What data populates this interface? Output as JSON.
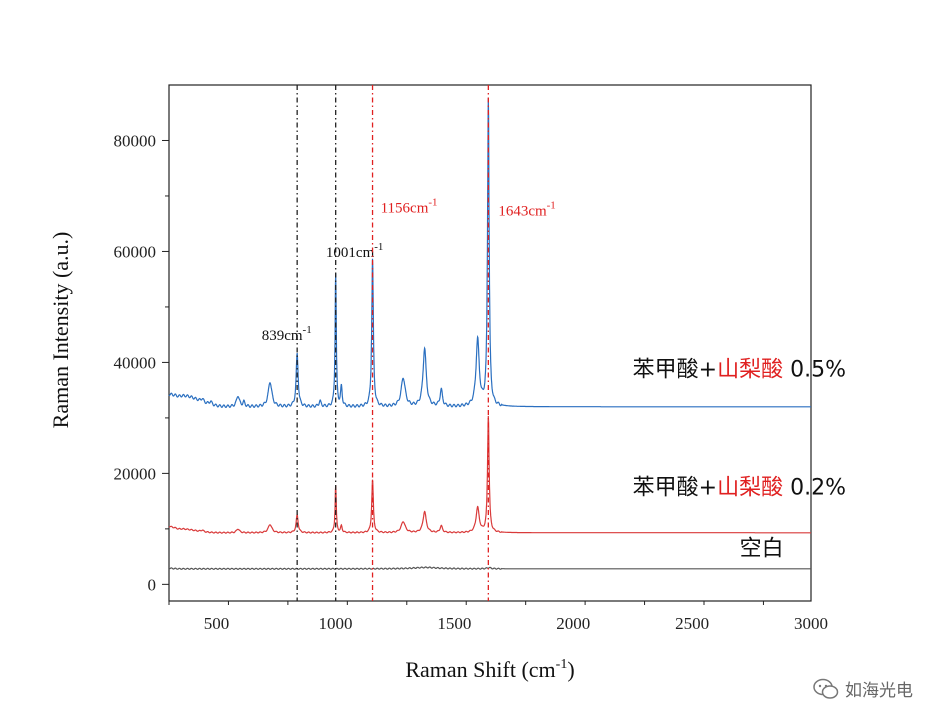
{
  "chart_data": {
    "type": "line",
    "xlabel": "Raman Shift (cm",
    "xlabel_sup": "-1",
    "xlabel_close": ")",
    "ylabel": "Raman Intensity (a.u.)",
    "xlim": [
      300,
      3000
    ],
    "ylim": [
      -3000,
      90000
    ],
    "xticks": [
      500,
      1000,
      1500,
      2000,
      2500,
      3000
    ],
    "yticks": [
      0,
      20000,
      40000,
      60000,
      80000
    ],
    "grid": false,
    "series": [
      {
        "name": "空白",
        "color": "#555555",
        "baseline": 2800,
        "start": 2900,
        "shoulder": [],
        "peaks": [
          {
            "x": 1380,
            "h": 250,
            "w": 60
          },
          {
            "x": 1645,
            "h": 200,
            "w": 10
          }
        ]
      },
      {
        "name": "苯甲酸+山梨酸 0.2%",
        "color": "#d93a3a",
        "baseline": 9300,
        "start": 10000,
        "shoulder": [
          {
            "x": 350,
            "h": 700,
            "w": 80
          }
        ],
        "peaks": [
          {
            "x": 440,
            "h": 300,
            "w": 6
          },
          {
            "x": 590,
            "h": 700,
            "w": 7
          },
          {
            "x": 725,
            "h": 1500,
            "w": 9
          },
          {
            "x": 839,
            "h": 3200,
            "w": 5
          },
          {
            "x": 1001,
            "h": 8500,
            "w": 3
          },
          {
            "x": 1025,
            "h": 1200,
            "w": 4
          },
          {
            "x": 1156,
            "h": 9500,
            "w": 4
          },
          {
            "x": 1285,
            "h": 2000,
            "w": 10
          },
          {
            "x": 1375,
            "h": 3800,
            "w": 8
          },
          {
            "x": 1445,
            "h": 1200,
            "w": 6
          },
          {
            "x": 1598,
            "h": 4500,
            "w": 8
          },
          {
            "x": 1643,
            "h": 21000,
            "w": 4
          }
        ]
      },
      {
        "name": "苯甲酸+山梨酸 0.5%",
        "color": "#2a6fc0",
        "baseline": 32000,
        "start": 33000,
        "shoulder": [
          {
            "x": 360,
            "h": 2000,
            "w": 90
          }
        ],
        "peaks": [
          {
            "x": 440,
            "h": 600,
            "w": 6
          },
          {
            "x": 475,
            "h": 600,
            "w": 6
          },
          {
            "x": 590,
            "h": 2000,
            "w": 7
          },
          {
            "x": 615,
            "h": 800,
            "w": 5
          },
          {
            "x": 725,
            "h": 4500,
            "w": 9
          },
          {
            "x": 839,
            "h": 9500,
            "w": 5
          },
          {
            "x": 935,
            "h": 1000,
            "w": 5
          },
          {
            "x": 1001,
            "h": 24000,
            "w": 3
          },
          {
            "x": 1025,
            "h": 3500,
            "w": 4
          },
          {
            "x": 1156,
            "h": 26500,
            "w": 4
          },
          {
            "x": 1285,
            "h": 5200,
            "w": 10
          },
          {
            "x": 1375,
            "h": 10500,
            "w": 8
          },
          {
            "x": 1445,
            "h": 3000,
            "w": 6
          },
          {
            "x": 1598,
            "h": 12000,
            "w": 8
          },
          {
            "x": 1643,
            "h": 55500,
            "w": 4
          }
        ]
      }
    ],
    "vlines": [
      {
        "x": 839,
        "color": "#222222",
        "label": "839cm",
        "label_sup": "-1",
        "label_color": "#111111",
        "label_x": 690,
        "label_y": 44000
      },
      {
        "x": 1001,
        "color": "#222222",
        "label": "1001cm",
        "label_sup": "-1",
        "label_color": "#111111",
        "label_x": 960,
        "label_y": 59000
      },
      {
        "x": 1156,
        "color": "#e02020",
        "label": "1156cm",
        "label_sup": "-1",
        "label_color": "#e02020",
        "label_x": 1190,
        "label_y": 67000
      },
      {
        "x": 1643,
        "color": "#e02020",
        "label": "1643cm",
        "label_sup": "-1",
        "label_color": "#e02020",
        "label_x": 1685,
        "label_y": 66500
      }
    ],
    "legend_labels": [
      {
        "part1": "苯甲酸+",
        "part2": "山梨酸",
        "part3": " 0.5%",
        "x": 2250,
        "y": 37500
      },
      {
        "part1": "苯甲酸+",
        "part2": "山梨酸",
        "part3": " 0.2%",
        "x": 2250,
        "y": 16200
      },
      {
        "part1": "空白",
        "part2": "",
        "part3": "",
        "x": 2700,
        "y": 5200
      }
    ],
    "legend_colors": {
      "normal": "#111111",
      "highlight": "#e02020"
    }
  },
  "watermark": {
    "text": "如海光电",
    "icon": "wechat-icon"
  }
}
